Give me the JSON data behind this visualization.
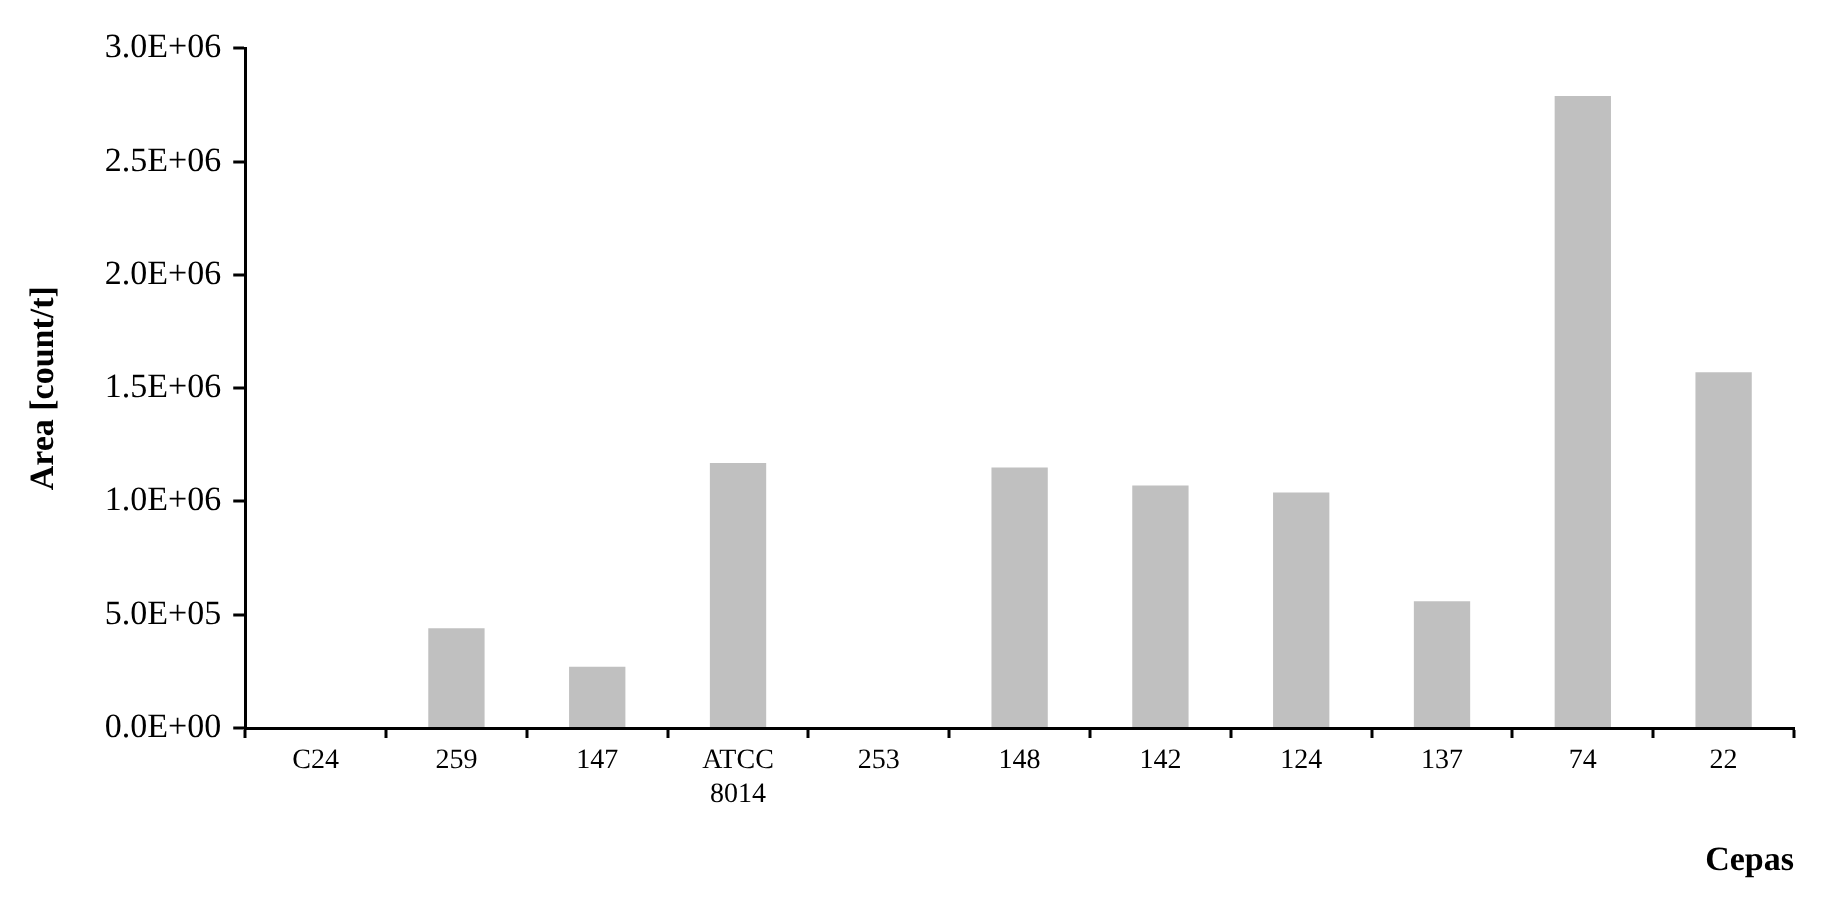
{
  "chart_data": {
    "type": "bar",
    "xlabel": "Cepas",
    "ylabel": "Area [count/t]",
    "categories": [
      "C24",
      "259",
      "147",
      "ATCC 8014",
      "253",
      "148",
      "142",
      "124",
      "137",
      "74",
      "22"
    ],
    "values": [
      0,
      440000,
      270000,
      1170000,
      0,
      1150000,
      1070000,
      1040000,
      560000,
      2790000,
      1570000
    ],
    "color": "#c0c0c0",
    "ylim": [
      0,
      3000000
    ],
    "yticks": [
      {
        "value": 0,
        "label": "0.0E+00"
      },
      {
        "value": 500000,
        "label": "5.0E+05"
      },
      {
        "value": 1000000,
        "label": "1.0E+06"
      },
      {
        "value": 1500000,
        "label": "1.5E+06"
      },
      {
        "value": 2000000,
        "label": "2.0E+06"
      },
      {
        "value": 2500000,
        "label": "2.5E+06"
      },
      {
        "value": 3000000,
        "label": "3.0E+06"
      }
    ],
    "grid": false,
    "legend": false
  }
}
